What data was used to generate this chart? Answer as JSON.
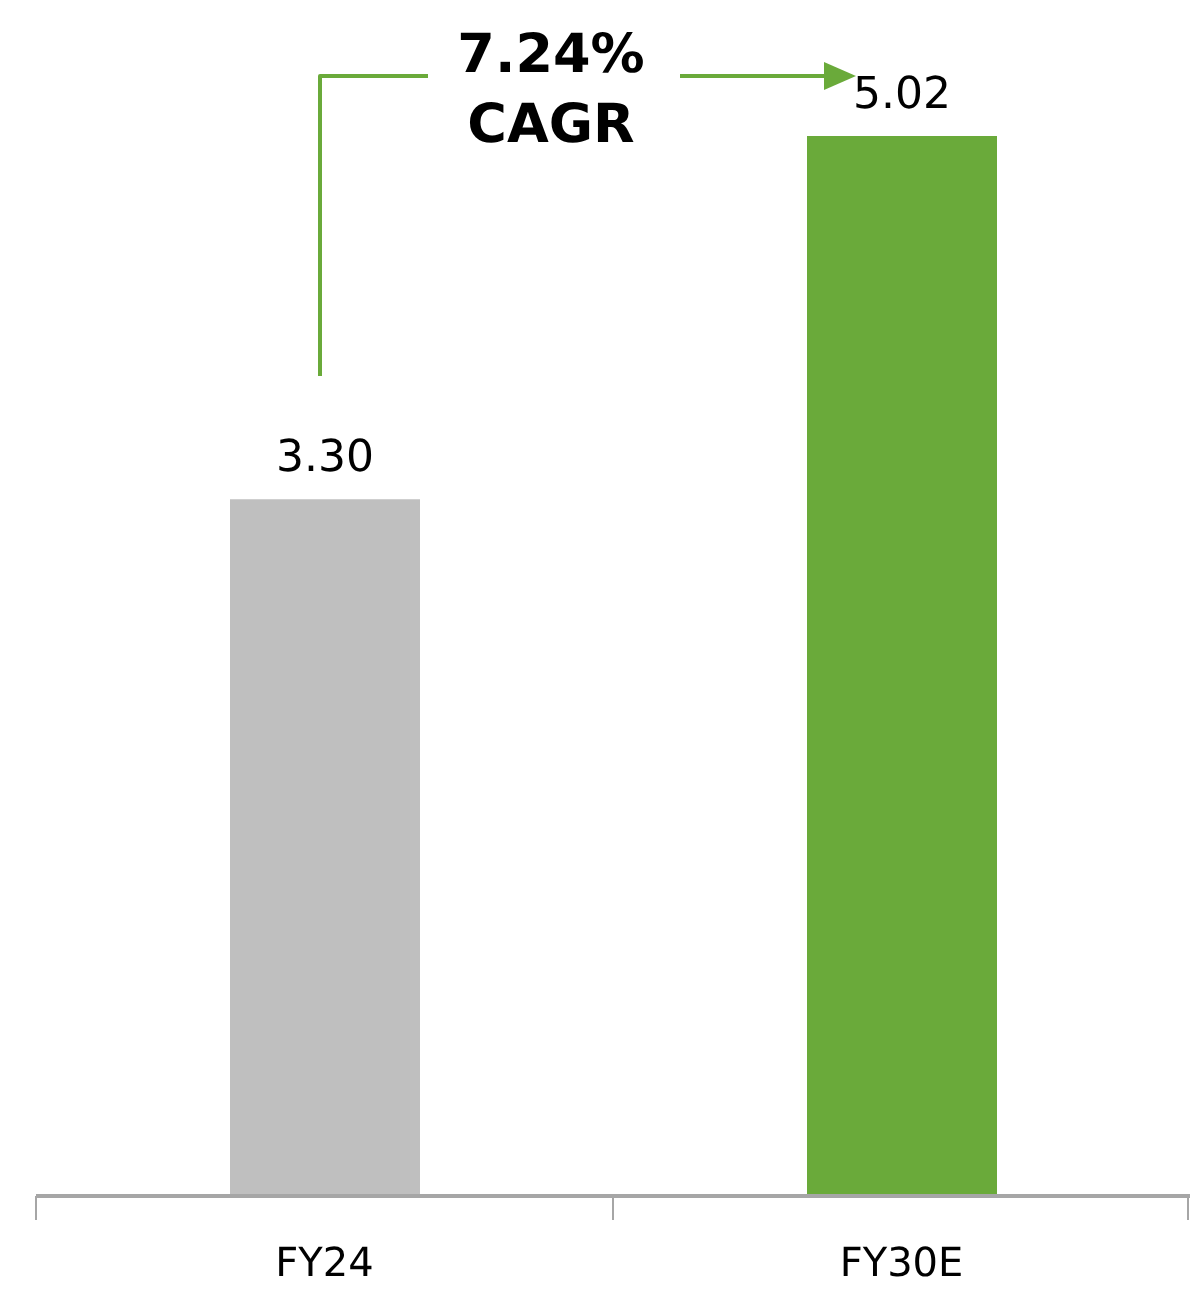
{
  "chart_data": {
    "type": "bar",
    "categories": [
      "FY24",
      "FY30E"
    ],
    "values": [
      3.3,
      5.02
    ],
    "colors": [
      "#bfbfbf",
      "#6aaa3a"
    ],
    "value_labels": [
      "3.30",
      "5.02"
    ],
    "annotations": [
      "7.24% CAGR"
    ],
    "grid": false,
    "legend": false
  }
}
